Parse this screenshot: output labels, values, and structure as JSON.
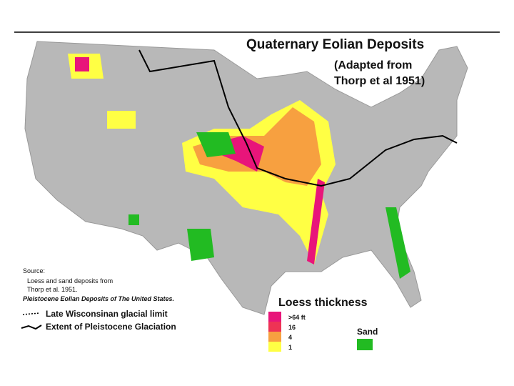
{
  "title": "Quaternary Eolian Deposits",
  "subtitle": [
    "(Adapted from",
    "Thorp et al 1951)"
  ],
  "source": {
    "heading": "Source:",
    "lines": [
      "Loess and sand deposits from",
      "Thorp et al. 1951."
    ],
    "citation": "Pleistocene Eolian Deposits of The United States."
  },
  "glacial_legend": [
    "Late Wisconsinan glacial limit",
    "Extent of Pleistocene Glaciation"
  ],
  "loess_legend": {
    "title": "Loess thickness",
    "items": [
      {
        "label": ">64 ft",
        "color": "#e8157a"
      },
      {
        "label": "16",
        "color": "#ee3355"
      },
      {
        "label": "4",
        "color": "#f7a040"
      },
      {
        "label": "1",
        "color": "#ffff44"
      }
    ]
  },
  "sand_legend": {
    "label": "Sand",
    "color": "#22bb22"
  }
}
